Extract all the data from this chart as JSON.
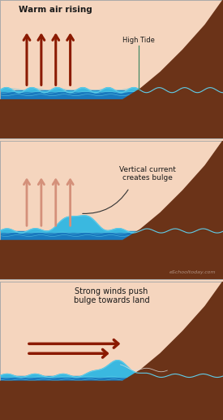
{
  "bg_color": "#f5d5be",
  "water_deep": "#1a7abf",
  "water_light": "#3ab8e0",
  "water_surface": "#60cce8",
  "land_color": "#6b3318",
  "border_color": "#aaaaaa",
  "arrow_color_dark": "#8b1a00",
  "arrow_color_light": "#d4907a",
  "wave_color": "#60cce8",
  "text_color": "#1a1a1a",
  "watermark_color": "#b09080",
  "tide_line_color": "#448866",
  "panel1_title": "Warm air rising",
  "panel1_label": "High Tide",
  "panel2_title": "Vertical current\ncreates bulge",
  "panel3_title": "Strong winds push\nbulge towards land",
  "watermark": "eSchooltoday.com"
}
